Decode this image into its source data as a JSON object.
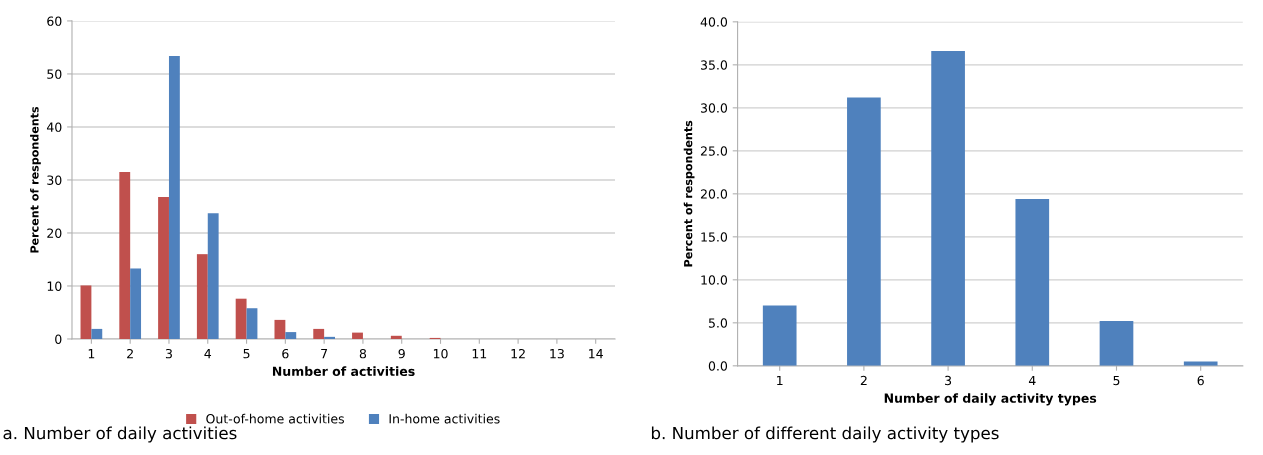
{
  "chart_data": [
    {
      "type": "bar",
      "xlabel": "Number of activities",
      "ylabel": "Percent of respondents",
      "categories": [
        "1",
        "2",
        "3",
        "4",
        "5",
        "6",
        "7",
        "8",
        "9",
        "10",
        "11",
        "12",
        "13",
        "14"
      ],
      "series": [
        {
          "name": "Out-of-home activities",
          "color": "#c0504d",
          "values": [
            10.1,
            31.5,
            26.8,
            16.0,
            7.6,
            3.6,
            1.9,
            1.2,
            0.6,
            0.2,
            0,
            0,
            0,
            0
          ]
        },
        {
          "name": "In-home activities",
          "color": "#4f81bd",
          "values": [
            1.9,
            13.3,
            53.4,
            23.7,
            5.8,
            1.3,
            0.4,
            0,
            0,
            0,
            0,
            0,
            0,
            0
          ]
        }
      ],
      "ylim": [
        0,
        60
      ],
      "yticks": [
        0,
        10,
        20,
        30,
        40,
        50,
        60
      ],
      "grid": "y",
      "legend": "bottom",
      "annotations": [
        "a. Number of daily activities"
      ]
    },
    {
      "type": "bar",
      "xlabel": "Number of daily activity types",
      "ylabel": "Percent of respondents",
      "categories": [
        "1",
        "2",
        "3",
        "4",
        "5",
        "6"
      ],
      "values": [
        7.0,
        31.2,
        36.6,
        19.4,
        5.2,
        0.5
      ],
      "color": "#4f81bd",
      "ylim": [
        0,
        40
      ],
      "yticks": [
        {
          "value": 0,
          "label": "0.0"
        },
        {
          "value": 5,
          "label": "5.0"
        },
        {
          "value": 10,
          "label": "10.0"
        },
        {
          "value": 15,
          "label": "15.0"
        },
        {
          "value": 20,
          "label": "20.0"
        },
        {
          "value": 25,
          "label": "25.0"
        },
        {
          "value": 30,
          "label": "30.0"
        },
        {
          "value": 35,
          "label": "35.0"
        },
        {
          "value": 40,
          "label": "40.0"
        }
      ],
      "grid": "y",
      "annotations": [
        "b. Number of different daily activity types"
      ]
    }
  ]
}
